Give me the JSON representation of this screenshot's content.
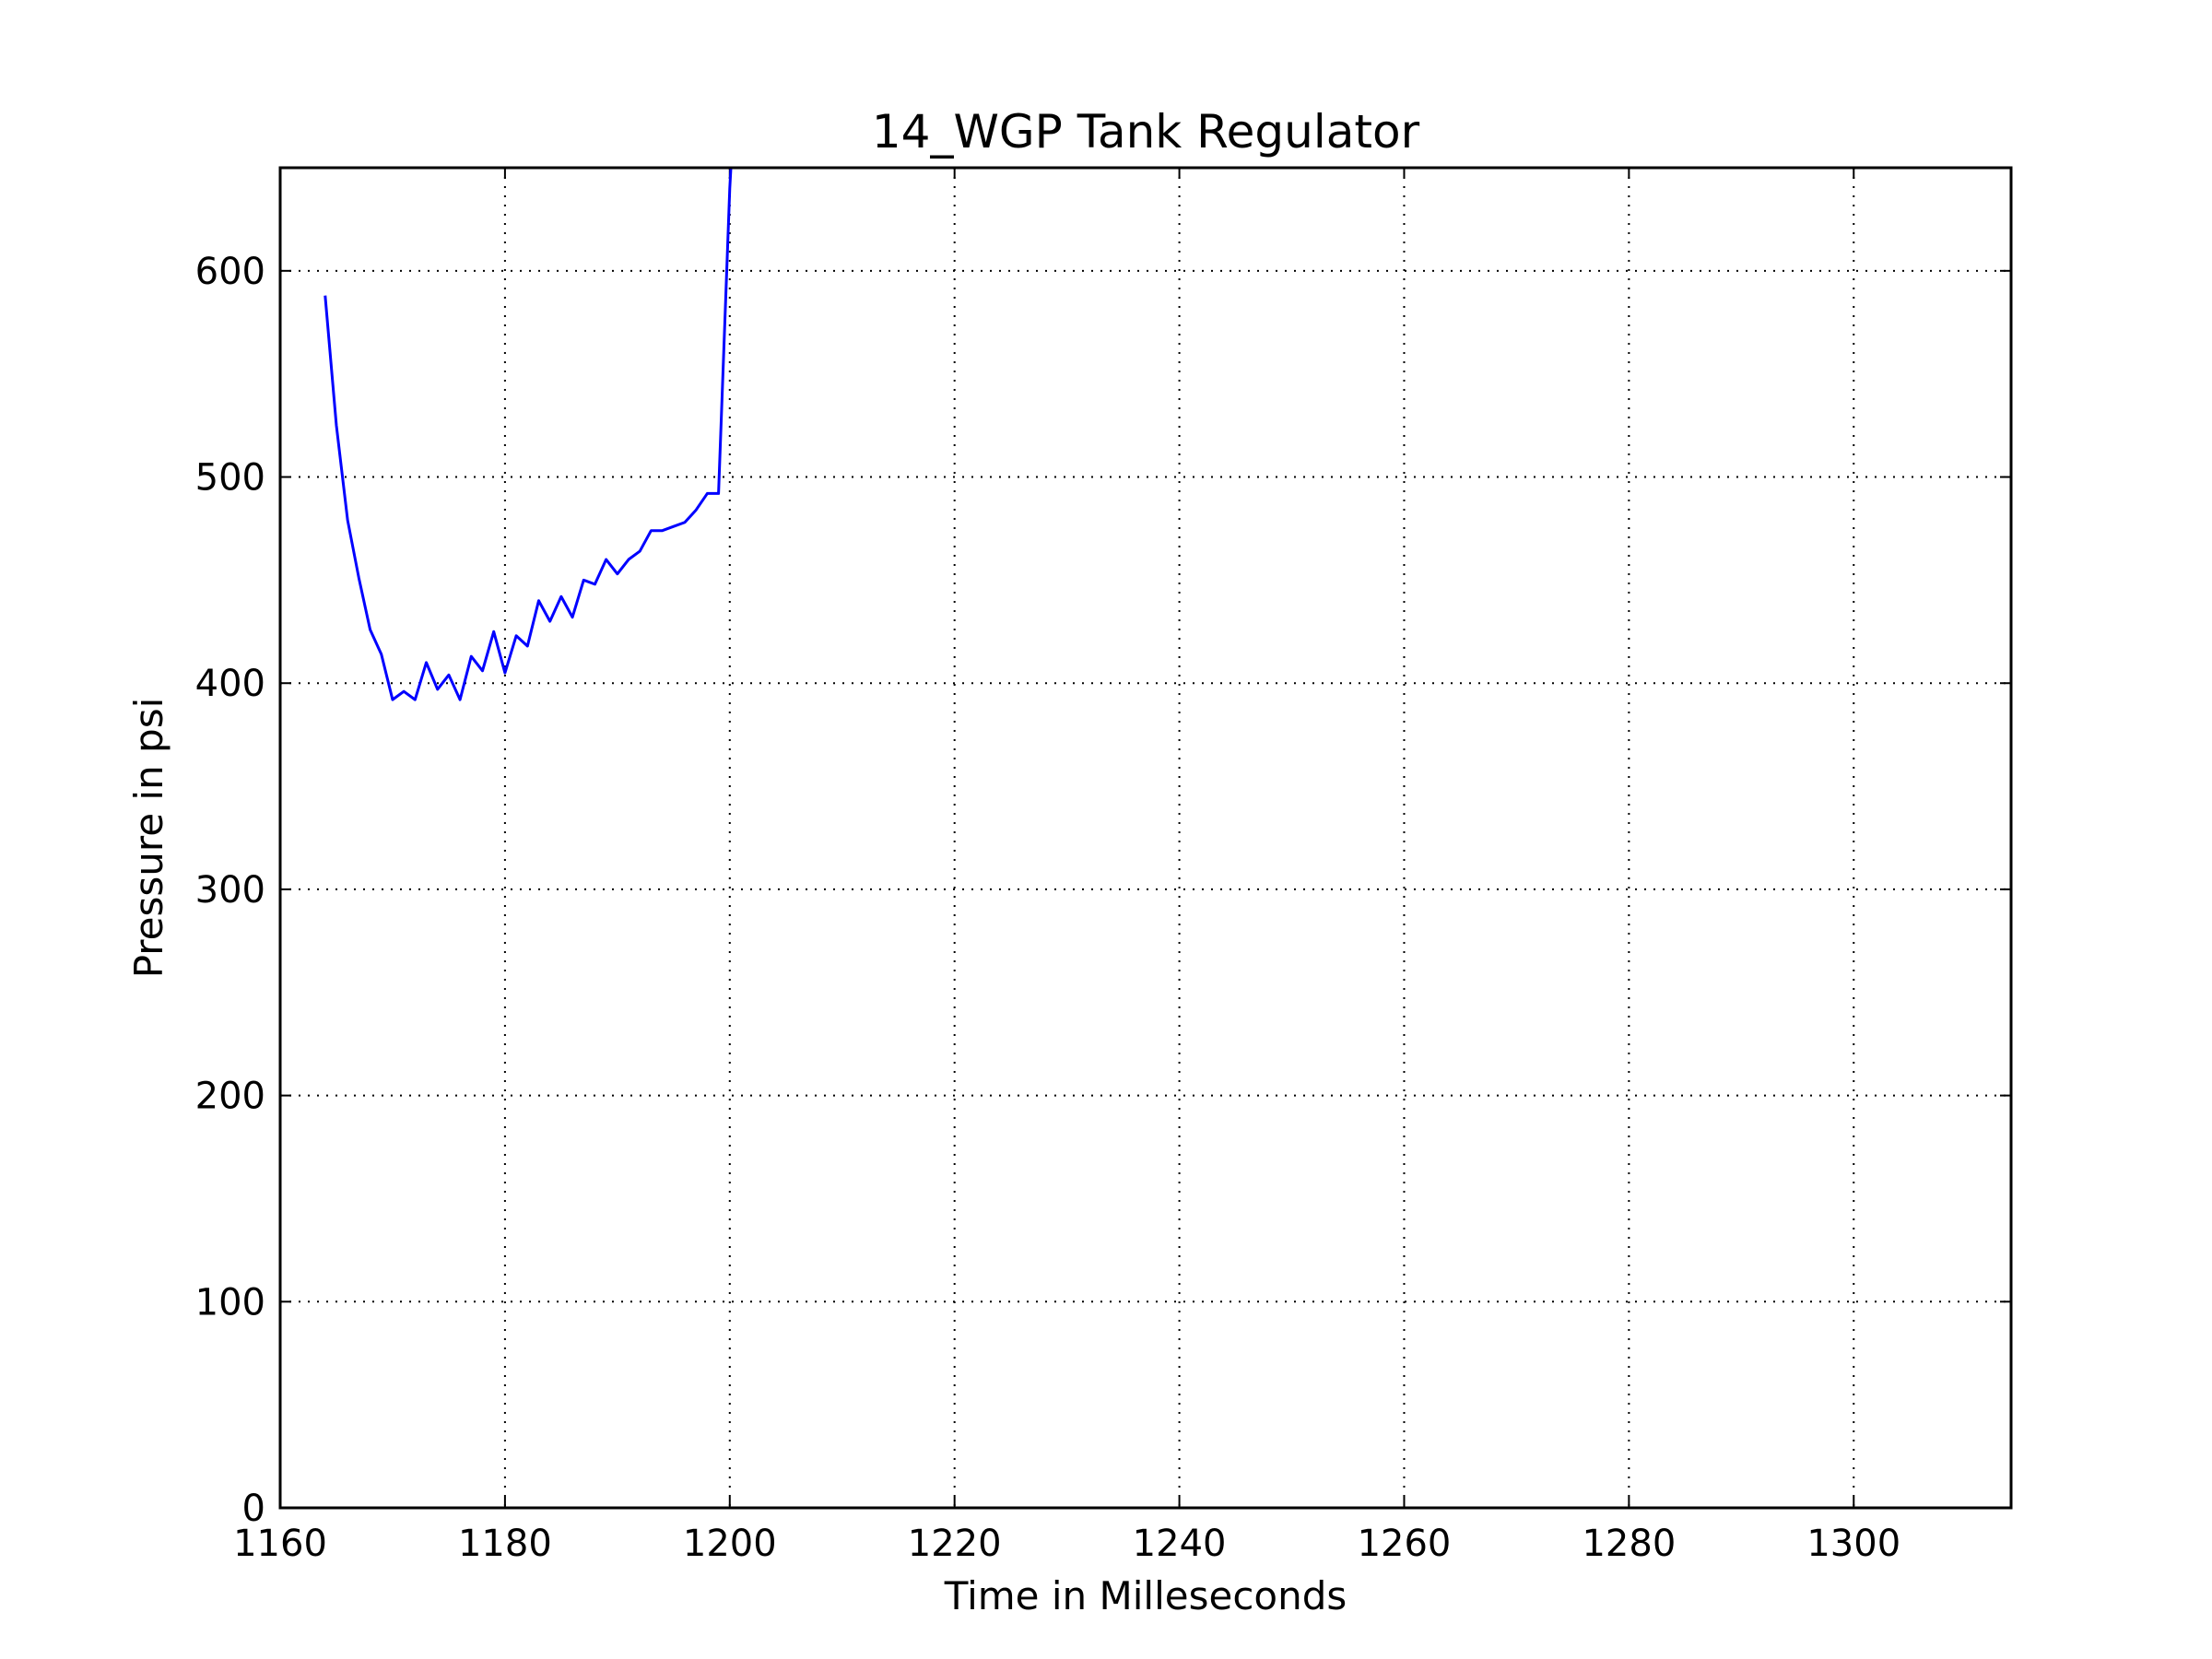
{
  "chart_data": {
    "type": "line",
    "title": "14_WGP Tank Regulator",
    "xlabel": "Time in Milleseconds",
    "ylabel": "Pressure in psi",
    "xlim": [
      1160,
      1314
    ],
    "ylim": [
      0,
      650
    ],
    "xticks": [
      1160,
      1180,
      1200,
      1220,
      1240,
      1260,
      1280,
      1300
    ],
    "yticks": [
      0,
      100,
      200,
      300,
      400,
      500,
      600
    ],
    "x_tick_labels": [
      "1160",
      "1180",
      "1200",
      "1220",
      "1240",
      "1260",
      "1280",
      "1300"
    ],
    "y_tick_labels": [
      "0",
      "100",
      "200",
      "300",
      "400",
      "500",
      "600"
    ],
    "grid": true,
    "grid_style": "dotted",
    "line_color": "#0000ff",
    "series": [
      {
        "x": [
          1164,
          1165,
          1166,
          1167,
          1168,
          1169,
          1170,
          1171,
          1172,
          1173,
          1174,
          1175,
          1176,
          1177,
          1178,
          1179,
          1180,
          1181,
          1182,
          1183,
          1184,
          1185,
          1186,
          1187,
          1188,
          1189,
          1190,
          1191,
          1192,
          1193,
          1194,
          1195,
          1196,
          1197,
          1198,
          1199,
          1200,
          1200.1
        ],
        "values": [
          588,
          525,
          479,
          451,
          426,
          414,
          392,
          396,
          392,
          410,
          397,
          404,
          392,
          413,
          406,
          425,
          405,
          423,
          418,
          440,
          430,
          442,
          432,
          450,
          448,
          460,
          453,
          460,
          464,
          474,
          474,
          476,
          478,
          484,
          492,
          492,
          640,
          650
        ]
      }
    ]
  }
}
